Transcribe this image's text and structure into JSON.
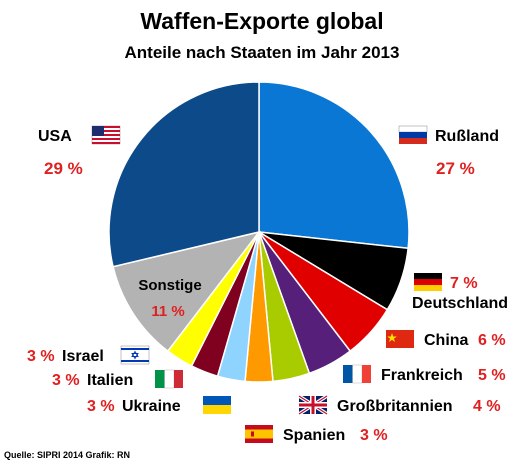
{
  "chart_data": {
    "type": "pie",
    "title": "Waffen-Exporte global",
    "subtitle": "Anteile nach Staaten im Jahr 2013",
    "unit": "%",
    "slices": [
      {
        "key": "russland",
        "label": "Rußland",
        "value": 27,
        "display": "27 %",
        "color": "#0a77d4"
      },
      {
        "key": "deutschland",
        "label": "Deutschland",
        "value": 7,
        "display": "7 %",
        "color": "#000000"
      },
      {
        "key": "china",
        "label": "China",
        "value": 6,
        "display": "6 %",
        "color": "#e00000"
      },
      {
        "key": "frankreich",
        "label": "Frankreich",
        "value": 5,
        "display": "5 %",
        "color": "#551f7a"
      },
      {
        "key": "grossbritannien",
        "label": "Großbritannien",
        "value": 4,
        "display": "4 %",
        "color": "#a9cc00"
      },
      {
        "key": "spanien",
        "label": "Spanien",
        "value": 3,
        "display": "3 %",
        "color": "#ff9900"
      },
      {
        "key": "ukraine",
        "label": "Ukraine",
        "value": 3,
        "display": "3 %",
        "color": "#8fd3ff"
      },
      {
        "key": "italien",
        "label": "Italien",
        "value": 3,
        "display": "3 %",
        "color": "#800020"
      },
      {
        "key": "israel",
        "label": "Israel",
        "value": 3,
        "display": "3 %",
        "color": "#ffff00"
      },
      {
        "key": "sonstige",
        "label": "Sonstige",
        "value": 11,
        "display": "11 %",
        "color": "#b3b3b3"
      },
      {
        "key": "usa",
        "label": "USA",
        "value": 29,
        "display": "29 %",
        "color": "#0d4a8a"
      }
    ],
    "start_angle": "12 o'clock, clockwise"
  },
  "source": "Quelle: SIPRI 2014   Grafik: RN",
  "colors": {
    "title": "#000000",
    "percent": "#e02020",
    "separator": "#ffffff"
  },
  "icons": {
    "usa": "us-flag-icon",
    "russland": "russia-flag-icon",
    "deutschland": "germany-flag-icon",
    "china": "china-flag-icon",
    "frankreich": "france-flag-icon",
    "grossbritannien": "uk-flag-icon",
    "spanien": "spain-flag-icon",
    "ukraine": "ukraine-flag-icon",
    "italien": "italy-flag-icon",
    "israel": "israel-flag-icon"
  }
}
